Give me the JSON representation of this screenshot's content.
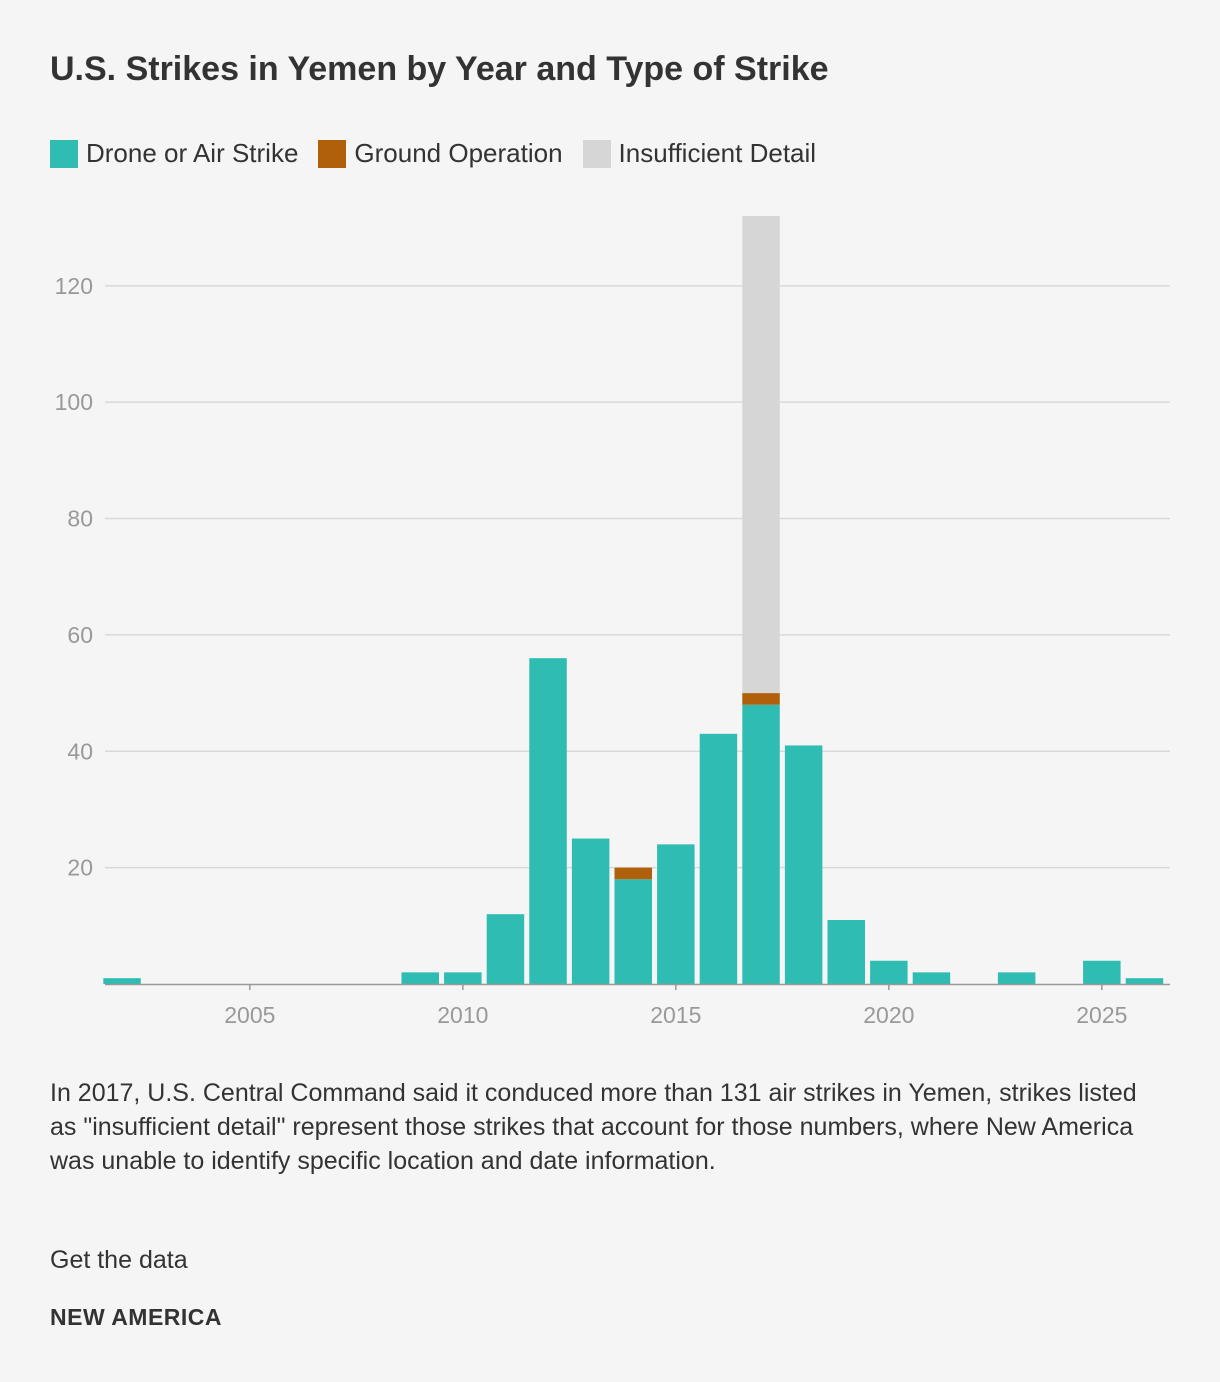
{
  "title": "U.S. Strikes in Yemen by Year and Type of Strike",
  "legend": [
    {
      "label": "Drone or Air Strike",
      "color": "#2fbcb3"
    },
    {
      "label": "Ground Operation",
      "color": "#b05f0b"
    },
    {
      "label": "Insufficient Detail",
      "color": "#d6d6d6"
    }
  ],
  "chart_data": {
    "type": "bar",
    "stacked": true,
    "title": "U.S. Strikes in Yemen by Year and Type of Strike",
    "xlabel": "",
    "ylabel": "",
    "x": [
      2002,
      2009,
      2010,
      2011,
      2012,
      2013,
      2014,
      2015,
      2016,
      2017,
      2018,
      2019,
      2020,
      2021,
      2023,
      2025,
      2026
    ],
    "series": [
      {
        "name": "Drone or Air Strike",
        "color": "#2fbcb3",
        "values": [
          1,
          2,
          2,
          12,
          56,
          25,
          18,
          24,
          43,
          48,
          41,
          11,
          4,
          2,
          2,
          4,
          1
        ]
      },
      {
        "name": "Ground Operation",
        "color": "#b05f0b",
        "values": [
          0,
          0,
          0,
          0,
          0,
          0,
          2,
          0,
          0,
          2,
          0,
          0,
          0,
          0,
          0,
          0,
          0
        ]
      },
      {
        "name": "Insufficient Detail",
        "color": "#d6d6d6",
        "values": [
          0,
          0,
          0,
          0,
          0,
          0,
          0,
          0,
          0,
          82,
          0,
          0,
          0,
          0,
          0,
          0,
          0
        ]
      }
    ],
    "xlim": [
      2001.6,
      2026.6
    ],
    "ylim": [
      0,
      132
    ],
    "x_ticks": [
      2005,
      2010,
      2015,
      2020,
      2025
    ],
    "y_ticks": [
      20,
      40,
      60,
      80,
      100,
      120
    ],
    "grid": true,
    "legend_position": "top-left"
  },
  "caption": "In 2017, U.S. Central Command said it conduced more than 131 air strikes in Yemen, strikes listed as \"insufficient detail\" represent those strikes that account for those numbers, where New America was unable to identify specific location and date information.",
  "data_link": "Get the data",
  "brand": "NEW AMERICA"
}
